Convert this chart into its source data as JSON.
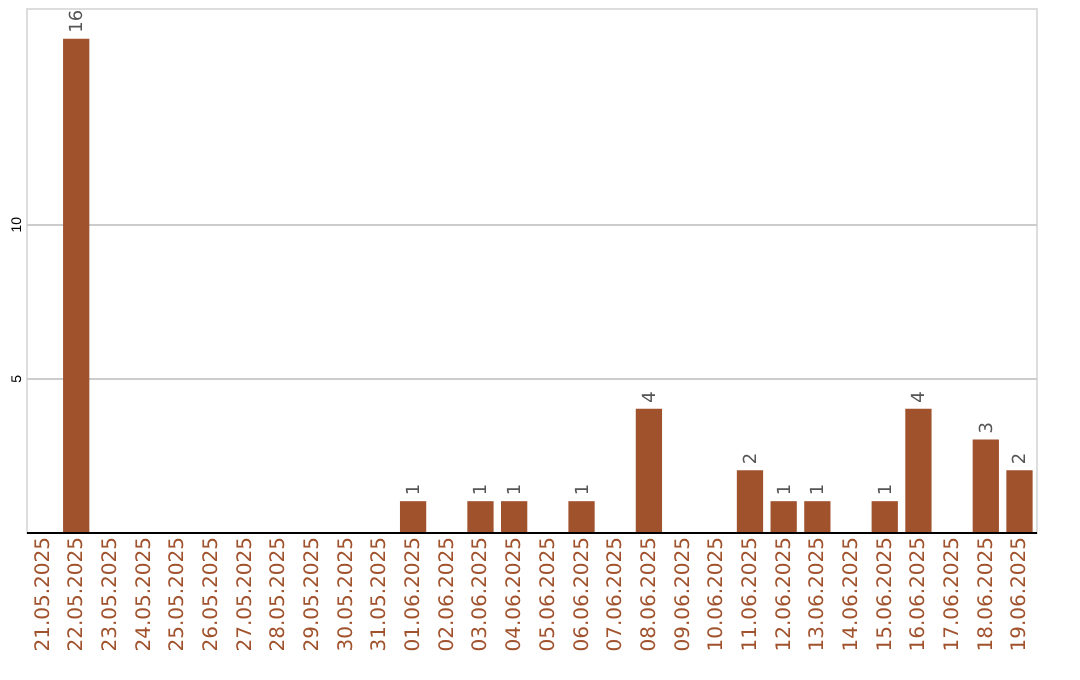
{
  "chart_data": {
    "type": "bar",
    "categories": [
      "21.05.2025",
      "22.05.2025",
      "23.05.2025",
      "24.05.2025",
      "25.05.2025",
      "26.05.2025",
      "27.05.2025",
      "28.05.2025",
      "29.05.2025",
      "30.05.2025",
      "31.05.2025",
      "01.06.2025",
      "02.06.2025",
      "03.06.2025",
      "04.06.2025",
      "05.06.2025",
      "06.06.2025",
      "07.06.2025",
      "08.06.2025",
      "09.06.2025",
      "10.06.2025",
      "11.06.2025",
      "12.06.2025",
      "13.06.2025",
      "14.06.2025",
      "15.06.2025",
      "16.06.2025",
      "17.06.2025",
      "18.06.2025",
      "19.06.2025"
    ],
    "values": [
      0,
      16,
      0,
      0,
      0,
      0,
      0,
      0,
      0,
      0,
      0,
      1,
      0,
      1,
      1,
      0,
      1,
      0,
      4,
      0,
      0,
      2,
      1,
      1,
      0,
      1,
      4,
      0,
      3,
      2
    ],
    "value_labels": [
      null,
      "16",
      null,
      null,
      null,
      null,
      null,
      null,
      null,
      null,
      null,
      "1",
      null,
      "1",
      "1",
      null,
      "1",
      null,
      "4",
      null,
      null,
      "2",
      "1",
      "1",
      null,
      "1",
      "4",
      null,
      "3",
      "2"
    ],
    "color": "#a0522d",
    "ylim": [
      0,
      17
    ],
    "yticks": [
      5,
      10
    ],
    "grid": "y"
  }
}
